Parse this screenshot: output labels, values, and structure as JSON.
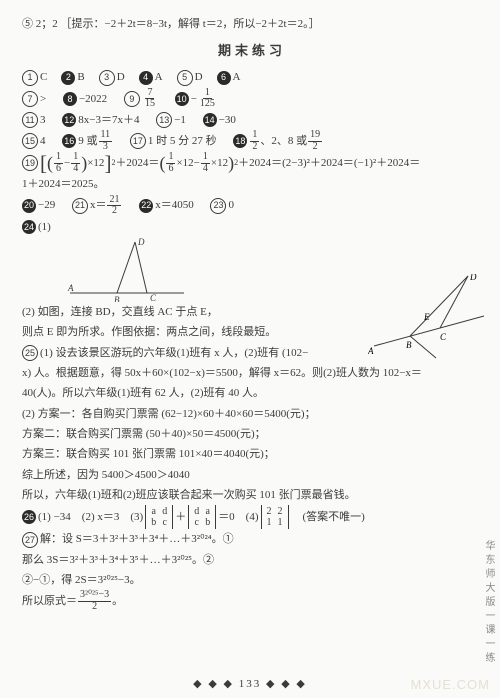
{
  "top_line": "⑤ 2；2 ［提示：−2＋2t＝8−3t，解得 t＝2，所以−2＋2t＝2。］",
  "title": "期末练习",
  "r1": [
    {
      "n": "1",
      "k": "w",
      "t": "C"
    },
    {
      "n": "2",
      "k": "b",
      "t": "B"
    },
    {
      "n": "3",
      "k": "w",
      "t": "D"
    },
    {
      "n": "4",
      "k": "b",
      "t": "A"
    },
    {
      "n": "5",
      "k": "w",
      "t": "D"
    },
    {
      "n": "6",
      "k": "b",
      "t": "A"
    }
  ],
  "r2_7": ">",
  "r2_8": "−2022",
  "r3_11": "3",
  "r3_12": "8x−3＝7x＋4",
  "r3_13": "−1",
  "r3_14": "−30",
  "r4_15": "4",
  "r4_17": "1 时 5 分 27 秒",
  "r5_tail": "＋2024＝(2−3)²＋2024＝(−1)²＋2024＝",
  "r5b": "1＋2024＝2025。",
  "r6_20": "−29",
  "r6_22": "x＝4050",
  "r6_23": "0",
  "r7": "(1)",
  "r8a": "(2) 如图，连接 BD，交直线 AC 于点 E，",
  "r8b": "则点 E 即为所求。作图依据：两点之间，线段最短。",
  "r9": "(1) 设去该景区游玩的六年级(1)班有 x 人，(2)班有 (102−",
  "r9b": "x) 人。根据题意，得 50x＋60×(102−x)＝5500，解得 x＝62。则(2)班人数为 102−x＝",
  "r9c": "40(人)。所以六年级(1)班有 62 人，(2)班有 40 人。",
  "r10": "(2) 方案一：各自购买门票需 (62−12)×60＋40×60＝5400(元)；",
  "r10b": "方案二：联合购买门票需 (50＋40)×50＝4500(元)；",
  "r10c": "方案三：联合购买 101 张门票需 101×40＝4040(元)；",
  "r10d": "综上所述，因为 5400＞4500＞4040",
  "r10e": "所以，六年级(1)班和(2)班应该联合起来一次购买 101 张门票最省钱。",
  "r11a": "(1) −34　(2) x＝3　(3)",
  "r11b": "＝0　(4)",
  "r11c": "(答案不唯一)",
  "r12": "解：设 S＝3＋3²＋3³＋3⁴＋…＋3²⁰²⁴。①",
  "r12b": "那么 3S＝3²＋3³＋3⁴＋3⁵＋…＋3²⁰²⁵。②",
  "r12c": "②−①，得 2S＝3²⁰²⁵−3。",
  "r12d_pre": "所以原式＝",
  "sidebar": "华东师大版一课一练",
  "pagenum": "◆ ◆ ◆ 133 ◆ ◆ ◆",
  "watermark": "MXUE.COM"
}
